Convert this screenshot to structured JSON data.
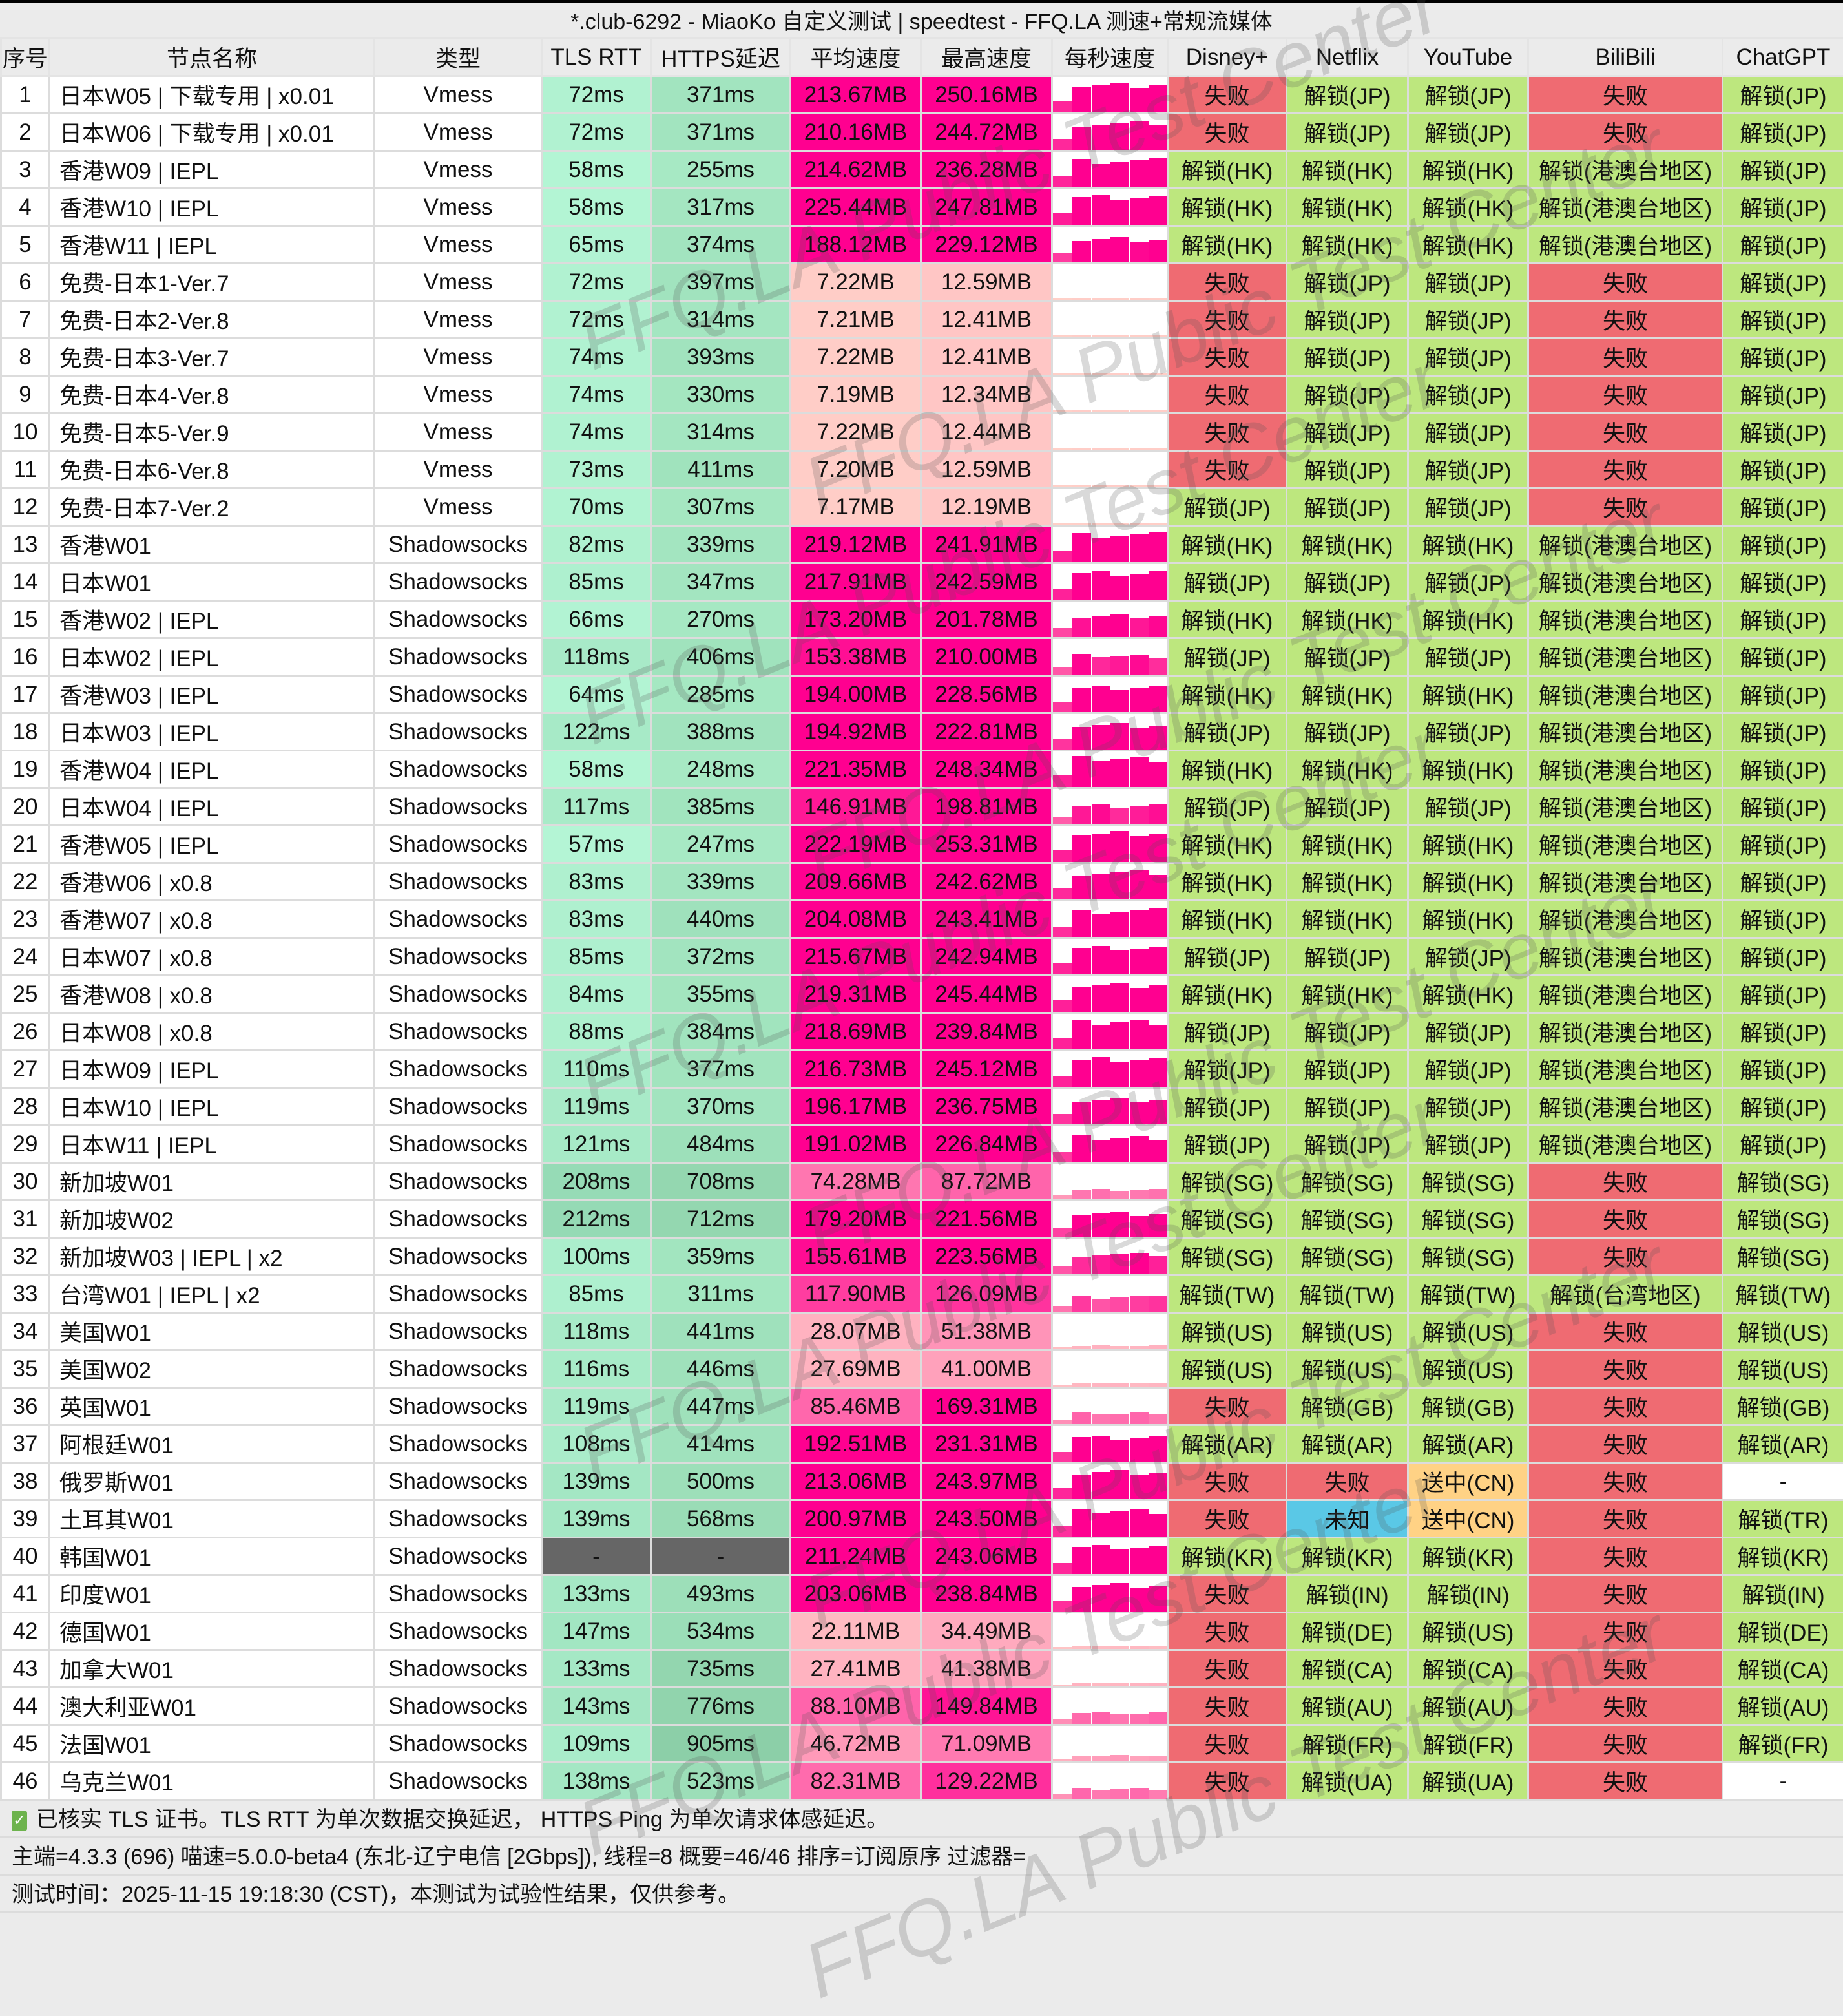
{
  "title": "*.club-6292 - MiaoKo 自定义测试 | speedtest - FFQ.LA 测速+常规流媒体",
  "watermark": "FFQ.LA Public Test Center",
  "headers": [
    "序号",
    "节点名称",
    "类型",
    "TLS RTT",
    "HTTPS延迟",
    "平均速度",
    "最高速度",
    "每秒速度",
    "Disney+",
    "Netflix",
    "YouTube",
    "BiliBili",
    "ChatGPT"
  ],
  "colors": {
    "fail": "#ef6b72",
    "unlock": "#bde77e",
    "unknown": "#5ac8e6",
    "cn": "#ffd285",
    "none": "#ffffff",
    "speed_high": "#ff0090",
    "speed_low": "#ffd0c8",
    "latency_na": "#666666"
  },
  "rows": [
    [
      "1",
      "日本W05 | 下载专用 | x0.01",
      "Vmess",
      "72ms",
      "371ms",
      "213.67MB",
      "250.16MB",
      "失败",
      "解锁(JP)",
      "解锁(JP)",
      "失败",
      "解锁(JP)"
    ],
    [
      "2",
      "日本W06 | 下载专用 | x0.01",
      "Vmess",
      "72ms",
      "371ms",
      "210.16MB",
      "244.72MB",
      "失败",
      "解锁(JP)",
      "解锁(JP)",
      "失败",
      "解锁(JP)"
    ],
    [
      "3",
      "香港W09 | IEPL",
      "Vmess",
      "58ms",
      "255ms",
      "214.62MB",
      "236.28MB",
      "解锁(HK)",
      "解锁(HK)",
      "解锁(HK)",
      "解锁(港澳台地区)",
      "解锁(JP)"
    ],
    [
      "4",
      "香港W10 | IEPL",
      "Vmess",
      "58ms",
      "317ms",
      "225.44MB",
      "247.81MB",
      "解锁(HK)",
      "解锁(HK)",
      "解锁(HK)",
      "解锁(港澳台地区)",
      "解锁(JP)"
    ],
    [
      "5",
      "香港W11 | IEPL",
      "Vmess",
      "65ms",
      "374ms",
      "188.12MB",
      "229.12MB",
      "解锁(HK)",
      "解锁(HK)",
      "解锁(HK)",
      "解锁(港澳台地区)",
      "解锁(JP)"
    ],
    [
      "6",
      "免费-日本1-Ver.7",
      "Vmess",
      "72ms",
      "397ms",
      "7.22MB",
      "12.59MB",
      "失败",
      "解锁(JP)",
      "解锁(JP)",
      "失败",
      "解锁(JP)"
    ],
    [
      "7",
      "免费-日本2-Ver.8",
      "Vmess",
      "72ms",
      "314ms",
      "7.21MB",
      "12.41MB",
      "失败",
      "解锁(JP)",
      "解锁(JP)",
      "失败",
      "解锁(JP)"
    ],
    [
      "8",
      "免费-日本3-Ver.7",
      "Vmess",
      "74ms",
      "393ms",
      "7.22MB",
      "12.41MB",
      "失败",
      "解锁(JP)",
      "解锁(JP)",
      "失败",
      "解锁(JP)"
    ],
    [
      "9",
      "免费-日本4-Ver.8",
      "Vmess",
      "74ms",
      "330ms",
      "7.19MB",
      "12.34MB",
      "失败",
      "解锁(JP)",
      "解锁(JP)",
      "失败",
      "解锁(JP)"
    ],
    [
      "10",
      "免费-日本5-Ver.9",
      "Vmess",
      "74ms",
      "314ms",
      "7.22MB",
      "12.44MB",
      "失败",
      "解锁(JP)",
      "解锁(JP)",
      "失败",
      "解锁(JP)"
    ],
    [
      "11",
      "免费-日本6-Ver.8",
      "Vmess",
      "73ms",
      "411ms",
      "7.20MB",
      "12.59MB",
      "失败",
      "解锁(JP)",
      "解锁(JP)",
      "失败",
      "解锁(JP)"
    ],
    [
      "12",
      "免费-日本7-Ver.2",
      "Vmess",
      "70ms",
      "307ms",
      "7.17MB",
      "12.19MB",
      "解锁(JP)",
      "解锁(JP)",
      "解锁(JP)",
      "失败",
      "解锁(JP)"
    ],
    [
      "13",
      "香港W01",
      "Shadowsocks",
      "82ms",
      "339ms",
      "219.12MB",
      "241.91MB",
      "解锁(HK)",
      "解锁(HK)",
      "解锁(HK)",
      "解锁(港澳台地区)",
      "解锁(JP)"
    ],
    [
      "14",
      "日本W01",
      "Shadowsocks",
      "85ms",
      "347ms",
      "217.91MB",
      "242.59MB",
      "解锁(JP)",
      "解锁(JP)",
      "解锁(JP)",
      "解锁(港澳台地区)",
      "解锁(JP)"
    ],
    [
      "15",
      "香港W02 | IEPL",
      "Shadowsocks",
      "66ms",
      "270ms",
      "173.20MB",
      "201.78MB",
      "解锁(HK)",
      "解锁(HK)",
      "解锁(HK)",
      "解锁(港澳台地区)",
      "解锁(JP)"
    ],
    [
      "16",
      "日本W02 | IEPL",
      "Shadowsocks",
      "118ms",
      "406ms",
      "153.38MB",
      "210.00MB",
      "解锁(JP)",
      "解锁(JP)",
      "解锁(JP)",
      "解锁(港澳台地区)",
      "解锁(JP)"
    ],
    [
      "17",
      "香港W03 | IEPL",
      "Shadowsocks",
      "64ms",
      "285ms",
      "194.00MB",
      "228.56MB",
      "解锁(HK)",
      "解锁(HK)",
      "解锁(HK)",
      "解锁(港澳台地区)",
      "解锁(JP)"
    ],
    [
      "18",
      "日本W03 | IEPL",
      "Shadowsocks",
      "122ms",
      "388ms",
      "194.92MB",
      "222.81MB",
      "解锁(JP)",
      "解锁(JP)",
      "解锁(JP)",
      "解锁(港澳台地区)",
      "解锁(JP)"
    ],
    [
      "19",
      "香港W04 | IEPL",
      "Shadowsocks",
      "58ms",
      "248ms",
      "221.35MB",
      "248.34MB",
      "解锁(HK)",
      "解锁(HK)",
      "解锁(HK)",
      "解锁(港澳台地区)",
      "解锁(JP)"
    ],
    [
      "20",
      "日本W04 | IEPL",
      "Shadowsocks",
      "117ms",
      "385ms",
      "146.91MB",
      "198.81MB",
      "解锁(JP)",
      "解锁(JP)",
      "解锁(JP)",
      "解锁(港澳台地区)",
      "解锁(JP)"
    ],
    [
      "21",
      "香港W05 | IEPL",
      "Shadowsocks",
      "57ms",
      "247ms",
      "222.19MB",
      "253.31MB",
      "解锁(HK)",
      "解锁(HK)",
      "解锁(HK)",
      "解锁(港澳台地区)",
      "解锁(JP)"
    ],
    [
      "22",
      "香港W06 | x0.8",
      "Shadowsocks",
      "83ms",
      "339ms",
      "209.66MB",
      "242.62MB",
      "解锁(HK)",
      "解锁(HK)",
      "解锁(HK)",
      "解锁(港澳台地区)",
      "解锁(JP)"
    ],
    [
      "23",
      "香港W07 | x0.8",
      "Shadowsocks",
      "83ms",
      "440ms",
      "204.08MB",
      "243.41MB",
      "解锁(HK)",
      "解锁(HK)",
      "解锁(HK)",
      "解锁(港澳台地区)",
      "解锁(JP)"
    ],
    [
      "24",
      "日本W07 | x0.8",
      "Shadowsocks",
      "85ms",
      "372ms",
      "215.67MB",
      "242.94MB",
      "解锁(JP)",
      "解锁(JP)",
      "解锁(JP)",
      "解锁(港澳台地区)",
      "解锁(JP)"
    ],
    [
      "25",
      "香港W08 | x0.8",
      "Shadowsocks",
      "84ms",
      "355ms",
      "219.31MB",
      "245.44MB",
      "解锁(HK)",
      "解锁(HK)",
      "解锁(HK)",
      "解锁(港澳台地区)",
      "解锁(JP)"
    ],
    [
      "26",
      "日本W08 | x0.8",
      "Shadowsocks",
      "88ms",
      "384ms",
      "218.69MB",
      "239.84MB",
      "解锁(JP)",
      "解锁(JP)",
      "解锁(JP)",
      "解锁(港澳台地区)",
      "解锁(JP)"
    ],
    [
      "27",
      "日本W09 | IEPL",
      "Shadowsocks",
      "110ms",
      "377ms",
      "216.73MB",
      "245.12MB",
      "解锁(JP)",
      "解锁(JP)",
      "解锁(JP)",
      "解锁(港澳台地区)",
      "解锁(JP)"
    ],
    [
      "28",
      "日本W10 | IEPL",
      "Shadowsocks",
      "119ms",
      "370ms",
      "196.17MB",
      "236.75MB",
      "解锁(JP)",
      "解锁(JP)",
      "解锁(JP)",
      "解锁(港澳台地区)",
      "解锁(JP)"
    ],
    [
      "29",
      "日本W11 | IEPL",
      "Shadowsocks",
      "121ms",
      "484ms",
      "191.02MB",
      "226.84MB",
      "解锁(JP)",
      "解锁(JP)",
      "解锁(JP)",
      "解锁(港澳台地区)",
      "解锁(JP)"
    ],
    [
      "30",
      "新加坡W01",
      "Shadowsocks",
      "208ms",
      "708ms",
      "74.28MB",
      "87.72MB",
      "解锁(SG)",
      "解锁(SG)",
      "解锁(SG)",
      "失败",
      "解锁(SG)"
    ],
    [
      "31",
      "新加坡W02",
      "Shadowsocks",
      "212ms",
      "712ms",
      "179.20MB",
      "221.56MB",
      "解锁(SG)",
      "解锁(SG)",
      "解锁(SG)",
      "失败",
      "解锁(SG)"
    ],
    [
      "32",
      "新加坡W03 | IEPL | x2",
      "Shadowsocks",
      "100ms",
      "359ms",
      "155.61MB",
      "223.56MB",
      "解锁(SG)",
      "解锁(SG)",
      "解锁(SG)",
      "失败",
      "解锁(SG)"
    ],
    [
      "33",
      "台湾W01 | IEPL | x2",
      "Shadowsocks",
      "85ms",
      "311ms",
      "117.90MB",
      "126.09MB",
      "解锁(TW)",
      "解锁(TW)",
      "解锁(TW)",
      "解锁(台湾地区)",
      "解锁(TW)"
    ],
    [
      "34",
      "美国W01",
      "Shadowsocks",
      "118ms",
      "441ms",
      "28.07MB",
      "51.38MB",
      "解锁(US)",
      "解锁(US)",
      "解锁(US)",
      "失败",
      "解锁(US)"
    ],
    [
      "35",
      "美国W02",
      "Shadowsocks",
      "116ms",
      "446ms",
      "27.69MB",
      "41.00MB",
      "解锁(US)",
      "解锁(US)",
      "解锁(US)",
      "失败",
      "解锁(US)"
    ],
    [
      "36",
      "英国W01",
      "Shadowsocks",
      "119ms",
      "447ms",
      "85.46MB",
      "169.31MB",
      "失败",
      "解锁(GB)",
      "解锁(GB)",
      "失败",
      "解锁(GB)"
    ],
    [
      "37",
      "阿根廷W01",
      "Shadowsocks",
      "108ms",
      "414ms",
      "192.51MB",
      "231.31MB",
      "解锁(AR)",
      "解锁(AR)",
      "解锁(AR)",
      "失败",
      "解锁(AR)"
    ],
    [
      "38",
      "俄罗斯W01",
      "Shadowsocks",
      "139ms",
      "500ms",
      "213.06MB",
      "243.97MB",
      "失败",
      "失败",
      "送中(CN)",
      "失败",
      "-"
    ],
    [
      "39",
      "土耳其W01",
      "Shadowsocks",
      "139ms",
      "568ms",
      "200.97MB",
      "243.50MB",
      "失败",
      "未知",
      "送中(CN)",
      "失败",
      "解锁(TR)"
    ],
    [
      "40",
      "韩国W01",
      "Shadowsocks",
      "-",
      "-",
      "211.24MB",
      "243.06MB",
      "解锁(KR)",
      "解锁(KR)",
      "解锁(KR)",
      "失败",
      "解锁(KR)"
    ],
    [
      "41",
      "印度W01",
      "Shadowsocks",
      "133ms",
      "493ms",
      "203.06MB",
      "238.84MB",
      "失败",
      "解锁(IN)",
      "解锁(IN)",
      "失败",
      "解锁(IN)"
    ],
    [
      "42",
      "德国W01",
      "Shadowsocks",
      "147ms",
      "534ms",
      "22.11MB",
      "34.49MB",
      "失败",
      "解锁(DE)",
      "解锁(US)",
      "失败",
      "解锁(DE)"
    ],
    [
      "43",
      "加拿大W01",
      "Shadowsocks",
      "133ms",
      "735ms",
      "27.41MB",
      "41.38MB",
      "失败",
      "解锁(CA)",
      "解锁(CA)",
      "失败",
      "解锁(CA)"
    ],
    [
      "44",
      "澳大利亚W01",
      "Shadowsocks",
      "143ms",
      "776ms",
      "88.10MB",
      "149.84MB",
      "失败",
      "解锁(AU)",
      "解锁(AU)",
      "失败",
      "解锁(AU)"
    ],
    [
      "45",
      "法国W01",
      "Shadowsocks",
      "109ms",
      "905ms",
      "46.72MB",
      "71.09MB",
      "失败",
      "解锁(FR)",
      "解锁(FR)",
      "失败",
      "解锁(FR)"
    ],
    [
      "46",
      "乌克兰W01",
      "Shadowsocks",
      "138ms",
      "523ms",
      "82.31MB",
      "129.22MB",
      "失败",
      "解锁(UA)",
      "解锁(UA)",
      "失败",
      "-"
    ]
  ],
  "footer": {
    "line1": "已核实 TLS 证书。TLS RTT 为单次数据交换延迟， HTTPS Ping 为单次请求体感延迟。",
    "line2": "主端=4.3.3 (696) 喵速=5.0.0-beta4 (东北-辽宁电信 [2Gbps]), 线程=8 概要=46/46 排序=订阅原序 过滤器=",
    "line3": "测试时间：2025-11-15 19:18:30 (CST)，本测试为试验性结果，仅供参考。"
  }
}
